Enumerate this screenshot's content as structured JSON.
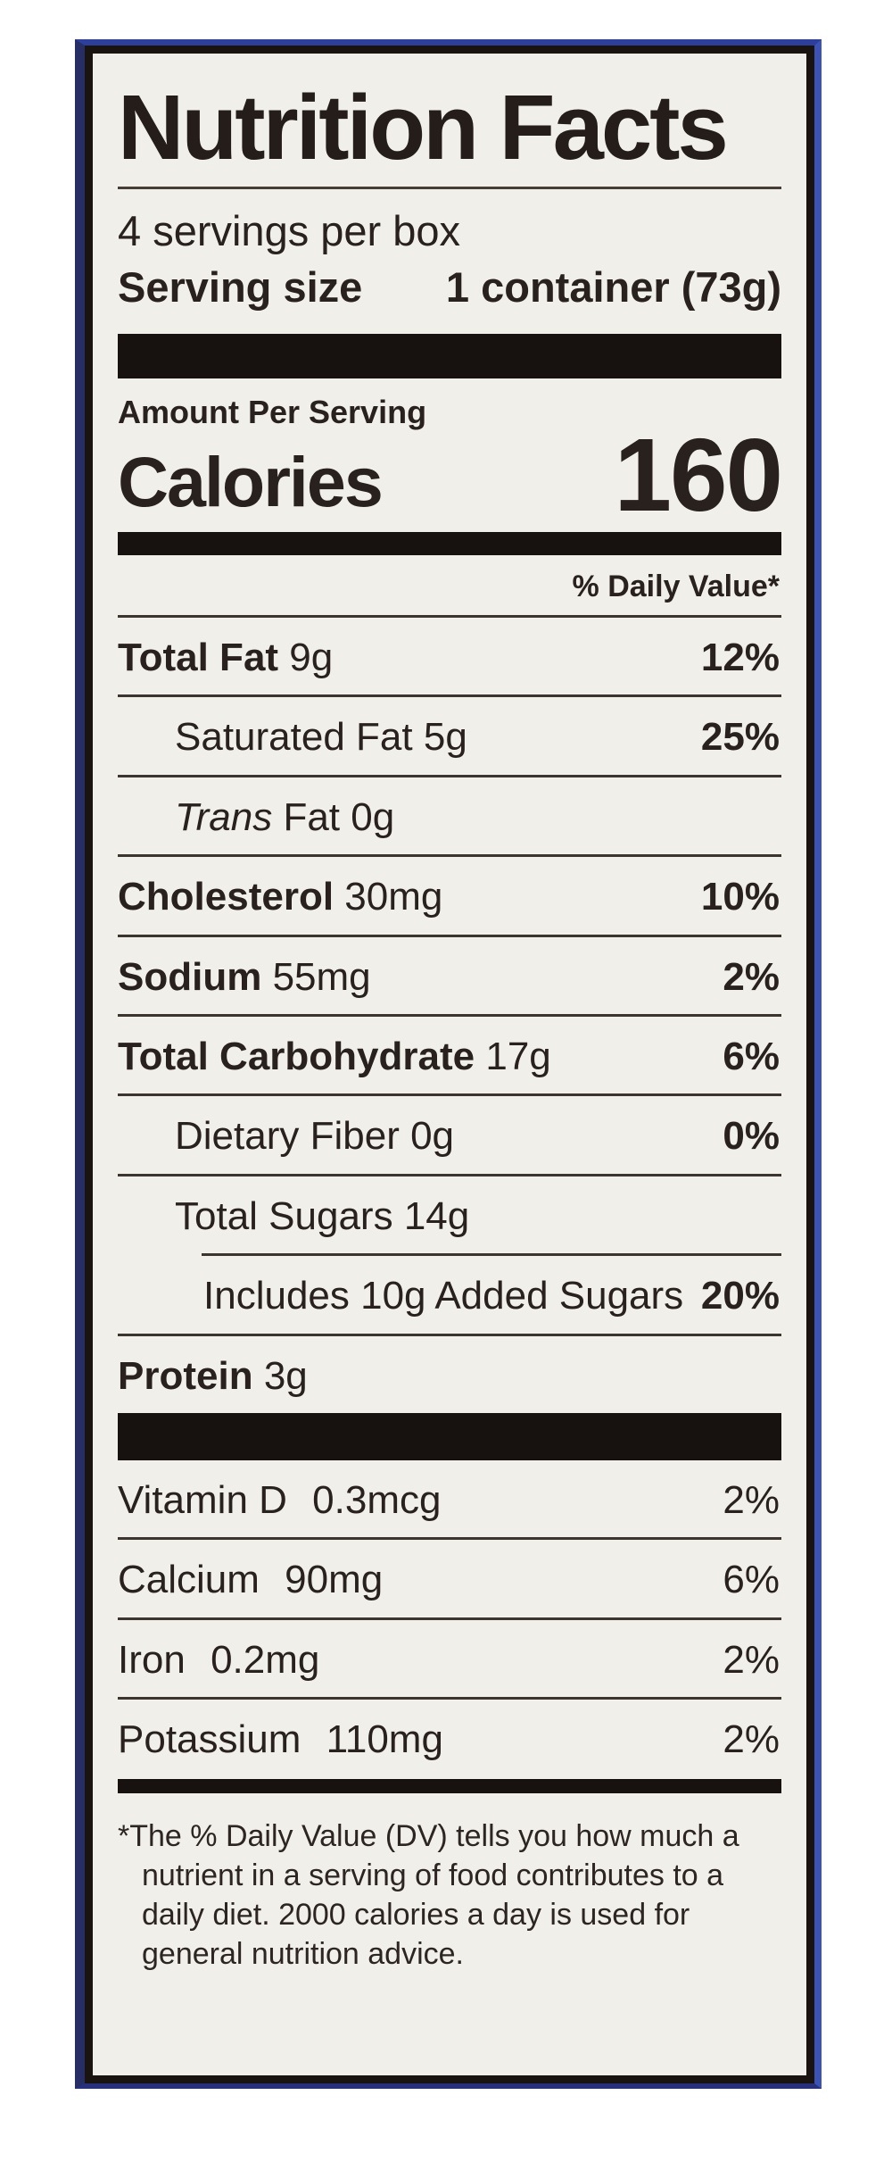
{
  "nutrition_label": {
    "title": "Nutrition Facts",
    "servings_per_container": "4 servings per box",
    "serving_size": {
      "label": "Serving size",
      "value": "1 container (73g)"
    },
    "calories_section": {
      "amount_per_serving": "Amount Per Serving",
      "label": "Calories",
      "value": "160"
    },
    "daily_value_header": "% Daily Value*",
    "nutrients": [
      {
        "name": "Total Fat",
        "amount": "9g",
        "daily_value": "12%"
      },
      {
        "name": "Saturated Fat",
        "amount": "5g",
        "daily_value": "25%"
      },
      {
        "name_italic": "Trans",
        "name": "Fat",
        "amount": "0g",
        "daily_value": ""
      },
      {
        "name": "Cholesterol",
        "amount": "30mg",
        "daily_value": "10%"
      },
      {
        "name": "Sodium",
        "amount": "55mg",
        "daily_value": "2%"
      },
      {
        "name": "Total Carbohydrate",
        "amount": "17g",
        "daily_value": "6%"
      },
      {
        "name": "Dietary Fiber",
        "amount": "0g",
        "daily_value": "0%"
      },
      {
        "name": "Total Sugars",
        "amount": "14g",
        "daily_value": ""
      },
      {
        "name": "Includes 10g Added Sugars",
        "amount": "",
        "daily_value": "20%"
      },
      {
        "name": "Protein",
        "amount": "3g",
        "daily_value": ""
      }
    ],
    "micronutrients": [
      {
        "name": "Vitamin D",
        "amount": "0.3mcg",
        "daily_value": "2%"
      },
      {
        "name": "Calcium",
        "amount": "90mg",
        "daily_value": "6%"
      },
      {
        "name": "Iron",
        "amount": "0.2mg",
        "daily_value": "2%"
      },
      {
        "name": "Potassium",
        "amount": "110mg",
        "daily_value": "2%"
      }
    ],
    "footnote": "*The % Daily Value (DV) tells you how much a nutrient in a serving of food contributes to a daily diet. 2000 calories a day is used for general nutrition advice.",
    "colors": {
      "label_background": "#f1efea",
      "text": "#29211d",
      "frame_blue": "#3d52b5",
      "frame_black": "#1a1410"
    }
  }
}
